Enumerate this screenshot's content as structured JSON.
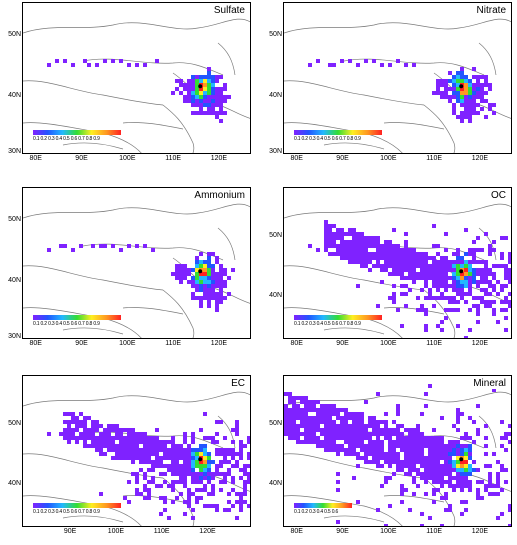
{
  "panels": [
    {
      "title": "Sulfate",
      "lat_ticks": [
        "50N",
        "40N",
        "30N"
      ],
      "lon_ticks": [
        "80E",
        "90E",
        "100E",
        "110E",
        "120E"
      ],
      "colorbar_labels": "0.1 0.2 0.3 0.4 0.5 0.6 0.7 0.8 0.9",
      "spread": "small",
      "colorbar_inside": true
    },
    {
      "title": "Nitrate",
      "lat_ticks": [
        "50N",
        "40N",
        "30N"
      ],
      "lon_ticks": [
        "80E",
        "90E",
        "100E",
        "110E",
        "120E"
      ],
      "colorbar_labels": "0.1 0.2 0.3 0.4 0.5 0.6 0.7 0.8 0.9",
      "spread": "small",
      "colorbar_inside": true
    },
    {
      "title": "Ammonium",
      "lat_ticks": [
        "50N",
        "40N",
        "30N"
      ],
      "lon_ticks": [
        "80E",
        "90E",
        "100E",
        "110E",
        "120E"
      ],
      "colorbar_labels": "0.1 0.2 0.3 0.4 0.5 0.6 0.7 0.8 0.9",
      "spread": "small",
      "colorbar_inside": true
    },
    {
      "title": "OC",
      "lat_ticks": [
        "50N",
        "40N"
      ],
      "lon_ticks": [
        "80E",
        "90E",
        "100E",
        "110E",
        "120E"
      ],
      "colorbar_labels": "0.1 0.2 0.3 0.4 0.5 0.6 0.7 0.8 0.9",
      "spread": "wide",
      "colorbar_inside": true
    },
    {
      "title": "EC",
      "lat_ticks": [
        "50N",
        "40N"
      ],
      "lon_ticks": [
        "90E",
        "100E",
        "110E",
        "120E"
      ],
      "colorbar_labels": "0.1 0.2 0.3 0.4 0.5 0.6 0.7 0.8 0.9",
      "spread": "wide",
      "colorbar_inside": true
    },
    {
      "title": "Mineral",
      "lat_ticks": [
        "50N",
        "40N"
      ],
      "lon_ticks": [
        "80E",
        "90E",
        "100E",
        "110E",
        "120E"
      ],
      "colorbar_labels": "0.1 0.2 0.3 0.4 0.5 0.6",
      "spread": "huge",
      "colorbar_inside": true
    }
  ],
  "colors": {
    "purple": "#7f22ff",
    "blue": "#2255ff",
    "cyan": "#22b8ff",
    "green": "#33dd33",
    "yellow": "#ffee22",
    "orange": "#ff9922",
    "red": "#ff2222",
    "border": "#7a7a7a"
  }
}
